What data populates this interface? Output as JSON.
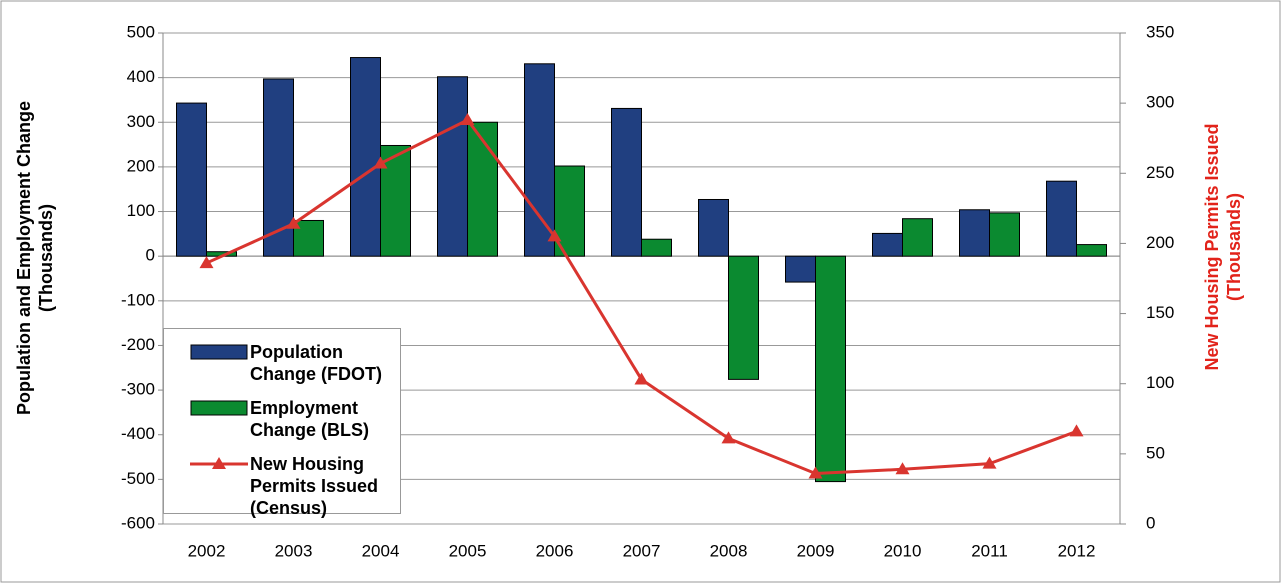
{
  "chart_data": {
    "type": "bar-line",
    "categories": [
      "2002",
      "2003",
      "2004",
      "2005",
      "2006",
      "2007",
      "2008",
      "2009",
      "2010",
      "2011",
      "2012"
    ],
    "series": [
      {
        "name": "Population Change (FDOT)",
        "type": "bar",
        "color": "#203f80",
        "values": [
          343,
          397,
          445,
          402,
          431,
          331,
          127,
          -58,
          51,
          104,
          168
        ]
      },
      {
        "name": "Employment Change (BLS)",
        "type": "bar",
        "color": "#0b8a30",
        "values": [
          10,
          80,
          248,
          300,
          202,
          38,
          -276,
          -505,
          84,
          97,
          26
        ]
      },
      {
        "name": "New Housing Permits Issued (Census)",
        "type": "line",
        "axis": "y2",
        "color": "#d9352f",
        "values": [
          186,
          214,
          257,
          288,
          205,
          103,
          61,
          36,
          39,
          43,
          66
        ]
      }
    ],
    "ylabel": "Population and Employment Change (Thousands)",
    "y2label": "New Housing Permits Issued (Thousands)",
    "ylim": [
      -600,
      500
    ],
    "yticks": [
      -600,
      -500,
      -400,
      -300,
      -200,
      -100,
      0,
      100,
      200,
      300,
      400,
      500
    ],
    "y2lim": [
      0,
      350
    ],
    "y2ticks": [
      0,
      50,
      100,
      150,
      200,
      250,
      300,
      350
    ],
    "grid": true,
    "legend": "lower-left"
  }
}
